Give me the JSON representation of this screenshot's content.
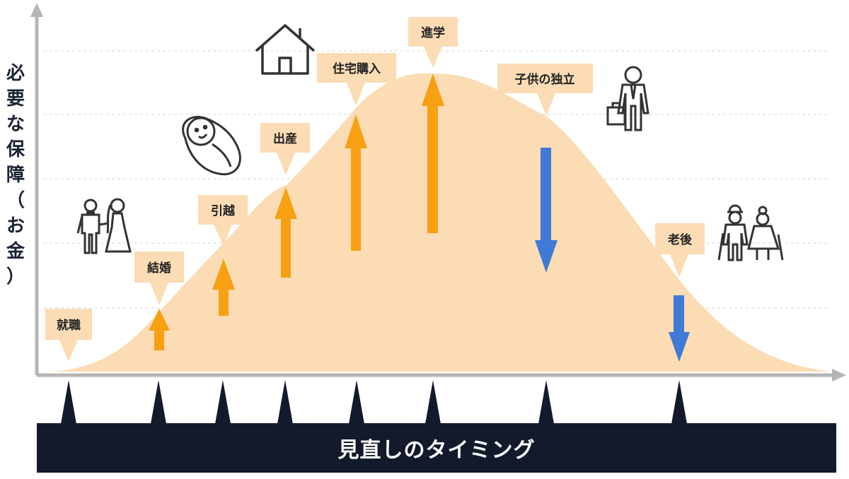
{
  "y_axis_label": "必要な保障（お金）",
  "timing_bar_label": "見直しのタイミング",
  "colors": {
    "curve_fill": "#fbdcb4",
    "label_box": "#fbdcb4",
    "increase_arrow": "#f7a012",
    "decrease_arrow": "#3f7ad6",
    "bar": "#121a2c",
    "axis": "#b5b5b5",
    "icon_stroke": "#333333"
  },
  "events": [
    {
      "label": "就職",
      "arrow": "none"
    },
    {
      "label": "結婚",
      "arrow": "up"
    },
    {
      "label": "引越",
      "arrow": "up"
    },
    {
      "label": "出産",
      "arrow": "up"
    },
    {
      "label": "住宅購入",
      "arrow": "up"
    },
    {
      "label": "進学",
      "arrow": "up"
    },
    {
      "label": "子供の独立",
      "arrow": "down"
    },
    {
      "label": "老後",
      "arrow": "down"
    }
  ],
  "icons": [
    "wedding-couple-icon",
    "baby-icon",
    "house-icon",
    "businessman-icon",
    "elderly-couple-icon"
  ]
}
